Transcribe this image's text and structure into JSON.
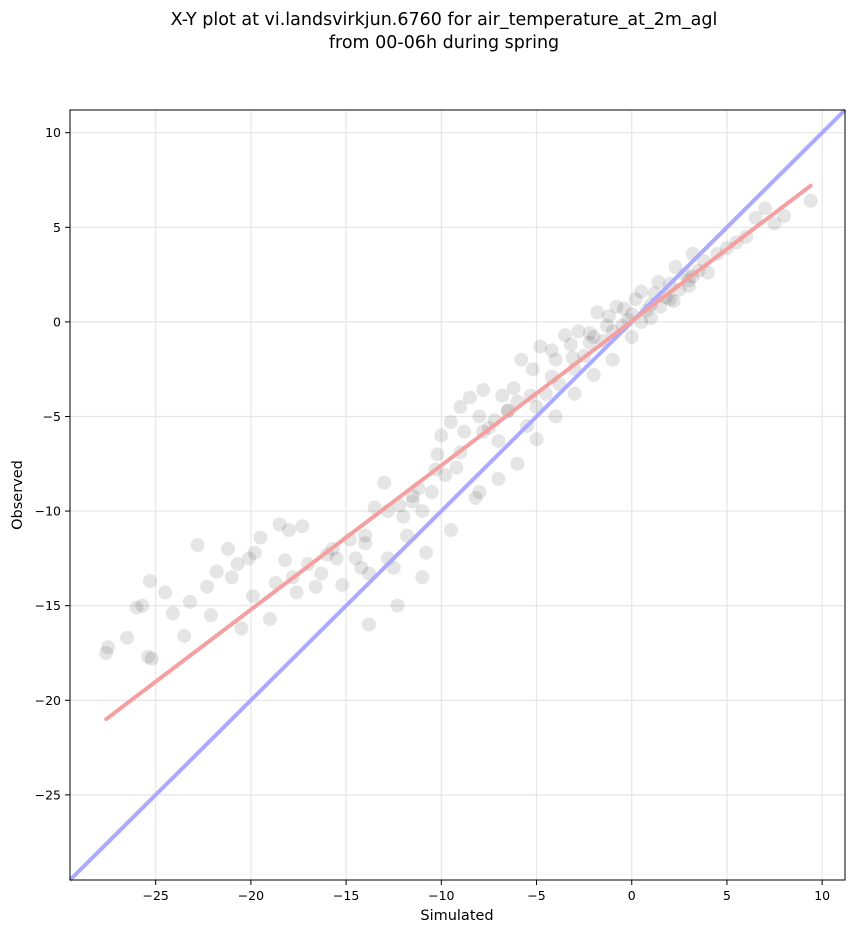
{
  "chart_data": {
    "type": "scatter",
    "title": "X-Y plot at vi.landsvirkjun.6760 for air_temperature_at_2m_agl",
    "subtitle": "from 00-06h during spring",
    "xlabel": "Simulated",
    "ylabel": "Observed",
    "xlim": [
      -29.5,
      11.2
    ],
    "ylim": [
      -29.5,
      11.2
    ],
    "x_ticks": [
      -25,
      -20,
      -15,
      -10,
      -5,
      0,
      5,
      10
    ],
    "y_ticks": [
      -25,
      -20,
      -15,
      -10,
      -5,
      0,
      5,
      10
    ],
    "x_tick_labels": [
      "−25",
      "−20",
      "−15",
      "−10",
      "−5",
      "0",
      "5",
      "10"
    ],
    "y_tick_labels": [
      "−25",
      "−20",
      "−15",
      "−10",
      "−5",
      "0",
      "5",
      "10"
    ],
    "grid": true,
    "legend": "none",
    "colors": {
      "points": "#000000",
      "identity_line": "#aaaaff",
      "fit_line": "#f4a0a0"
    },
    "series": [
      {
        "type": "scatter",
        "x": [
          -27.6,
          -27.5,
          -26.5,
          -26.0,
          -25.7,
          -25.4,
          -25.3,
          -25.2,
          -24.5,
          -24.1,
          -23.5,
          -23.2,
          -22.8,
          -22.3,
          -22.1,
          -21.8,
          -21.2,
          -21.0,
          -20.7,
          -20.5,
          -20.1,
          -19.9,
          -19.8,
          -19.5,
          -19.0,
          -18.7,
          -18.5,
          -18.2,
          -18.0,
          -17.8,
          -17.6,
          -17.3,
          -17.0,
          -16.6,
          -16.3,
          -16.0,
          -15.7,
          -15.2,
          -14.8,
          -14.5,
          -14.2,
          -14.0,
          -13.8,
          -13.5,
          -13.0,
          -12.8,
          -12.5,
          -12.2,
          -12.0,
          -11.8,
          -11.5,
          -11.2,
          -11.0,
          -10.8,
          -10.5,
          -10.2,
          -10.0,
          -9.8,
          -9.5,
          -9.2,
          -9.0,
          -8.8,
          -8.5,
          -8.2,
          -8.0,
          -7.8,
          -7.5,
          -7.2,
          -7.0,
          -6.8,
          -6.5,
          -6.2,
          -6.0,
          -5.8,
          -5.5,
          -5.2,
          -5.0,
          -4.8,
          -4.5,
          -4.2,
          -4.0,
          -3.8,
          -3.5,
          -3.2,
          -3.0,
          -2.8,
          -2.5,
          -2.2,
          -2.0,
          -1.8,
          -1.5,
          -1.2,
          -1.0,
          -0.8,
          -0.5,
          -0.2,
          0.0,
          0.2,
          0.5,
          0.8,
          1.0,
          1.2,
          1.5,
          1.8,
          2.0,
          2.2,
          2.5,
          2.8,
          3.0,
          3.2,
          3.5,
          3.8,
          4.0,
          4.5,
          5.0,
          5.5,
          6.0,
          6.5,
          7.0,
          7.5,
          8.0,
          9.4,
          -13.8,
          -12.3,
          -11.0,
          -9.5,
          -8.0,
          -7.0,
          -6.0,
          -5.0,
          -4.0,
          -3.0,
          -2.0,
          -1.0,
          0.0,
          1.0,
          2.0,
          3.0,
          -15.5,
          -14.0,
          -12.8,
          -11.5,
          -10.3,
          -9.0,
          -7.8,
          -6.5,
          -5.3,
          -4.2,
          -3.1,
          -2.2,
          -1.3,
          -0.4,
          0.5,
          1.4,
          2.3,
          3.2
        ],
        "y": [
          -17.5,
          -17.2,
          -16.7,
          -15.1,
          -15.0,
          -17.7,
          -13.7,
          -17.8,
          -14.3,
          -15.4,
          -16.6,
          -14.8,
          -11.8,
          -14.0,
          -15.5,
          -13.2,
          -12.0,
          -13.5,
          -12.8,
          -16.2,
          -12.5,
          -14.5,
          -12.2,
          -11.4,
          -15.7,
          -13.8,
          -10.7,
          -12.6,
          -11.0,
          -13.5,
          -14.3,
          -10.8,
          -12.8,
          -14.0,
          -13.3,
          -12.3,
          -12.0,
          -13.9,
          -11.5,
          -12.5,
          -13.0,
          -11.7,
          -13.3,
          -9.8,
          -8.5,
          -12.5,
          -13.0,
          -9.7,
          -10.3,
          -11.3,
          -9.5,
          -8.8,
          -10.0,
          -12.2,
          -9.0,
          -7.0,
          -6.0,
          -8.1,
          -5.3,
          -7.7,
          -4.5,
          -5.8,
          -4.0,
          -9.3,
          -5.0,
          -3.6,
          -5.6,
          -5.2,
          -6.3,
          -3.9,
          -4.7,
          -3.5,
          -4.2,
          -2.0,
          -5.5,
          -2.5,
          -4.5,
          -1.3,
          -3.8,
          -1.5,
          -2.0,
          -3.3,
          -0.7,
          -1.2,
          -2.5,
          -0.5,
          -1.8,
          -0.6,
          -0.8,
          0.5,
          -1.0,
          0.3,
          -0.5,
          0.8,
          -0.2,
          0.1,
          0.4,
          1.2,
          0.0,
          0.6,
          0.9,
          1.5,
          0.8,
          1.3,
          2.0,
          1.1,
          1.7,
          2.5,
          1.9,
          2.4,
          2.7,
          3.2,
          2.6,
          3.6,
          3.9,
          4.2,
          4.5,
          5.5,
          6.0,
          5.2,
          5.6,
          6.4,
          -16.0,
          -15.0,
          -13.5,
          -11.0,
          -9.0,
          -8.3,
          -7.5,
          -6.2,
          -5.0,
          -3.8,
          -2.8,
          -2.0,
          -0.8,
          0.2,
          1.2,
          2.2,
          -12.5,
          -11.3,
          -10.0,
          -9.2,
          -7.8,
          -6.9,
          -5.8,
          -4.7,
          -3.9,
          -2.9,
          -1.9,
          -1.1,
          -0.2,
          0.7,
          1.6,
          2.1,
          2.9,
          3.6
        ]
      },
      {
        "type": "line",
        "name": "",
        "x": [
          -29.5,
          11.2
        ],
        "y": [
          -29.5,
          11.2
        ]
      },
      {
        "type": "line",
        "name": "",
        "x": [
          -27.6,
          9.4
        ],
        "y": [
          -21.0,
          7.2
        ]
      }
    ]
  }
}
